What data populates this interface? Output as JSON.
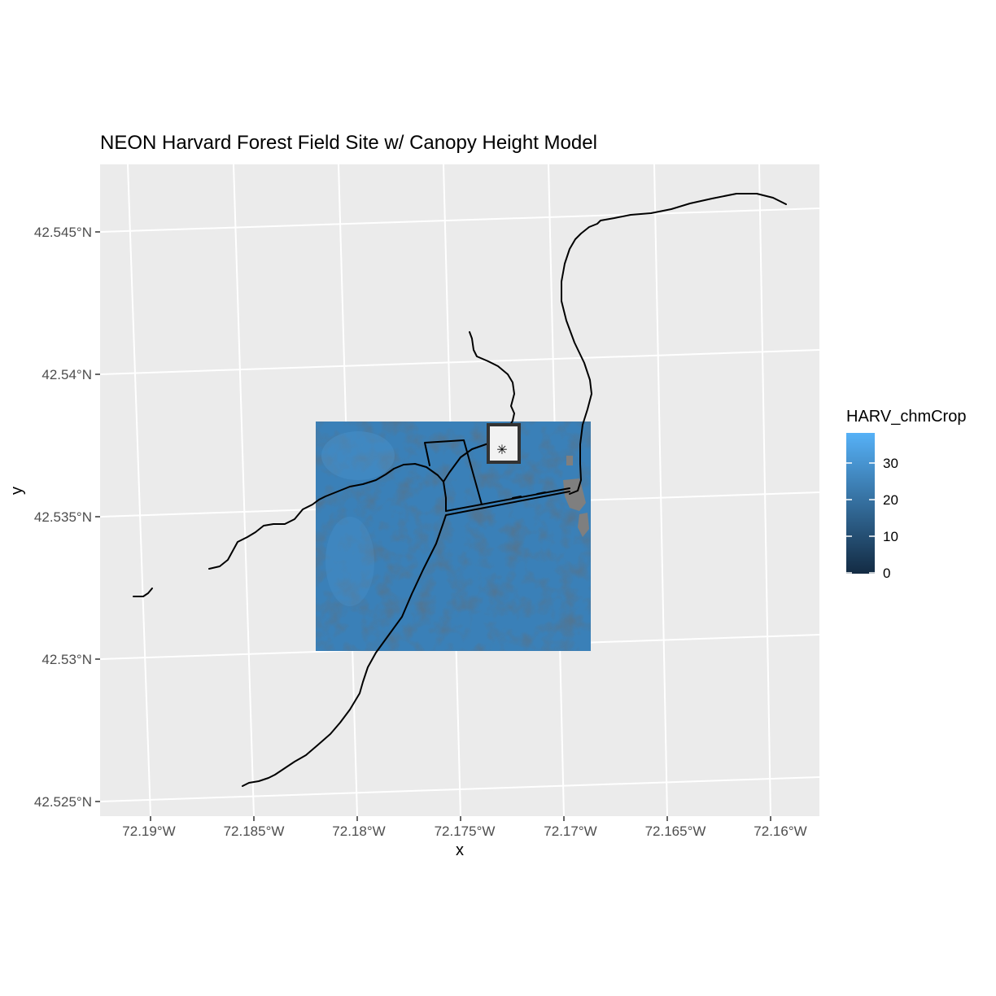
{
  "title": "NEON Harvard Forest Field Site w/ Canopy Height Model",
  "chart_data": {
    "type": "map",
    "xlabel": "x",
    "ylabel": "y",
    "x_ticks": [
      "72.19°W",
      "72.185°W",
      "72.18°W",
      "72.175°W",
      "72.17°W",
      "72.165°W",
      "72.16°W"
    ],
    "y_ticks": [
      "42.545°N",
      "42.54°N",
      "42.535°N",
      "42.53°N",
      "42.525°N"
    ],
    "legend": {
      "title": "HARV_chmCrop",
      "labels": [
        "0",
        "10",
        "20",
        "30"
      ],
      "range": [
        0,
        38
      ],
      "colors": {
        "low": "#132B43",
        "high": "#56B1F7"
      }
    },
    "layers": [
      "HARV_chmCrop raster",
      "roads and trails",
      "study area boundary",
      "tower location"
    ],
    "grid": true,
    "colors": {
      "panel": "#ebebeb",
      "grid": "#ffffff",
      "lines": "#000000",
      "raster_fill": "#3a80b8",
      "missing": "#7f7f7f"
    }
  }
}
